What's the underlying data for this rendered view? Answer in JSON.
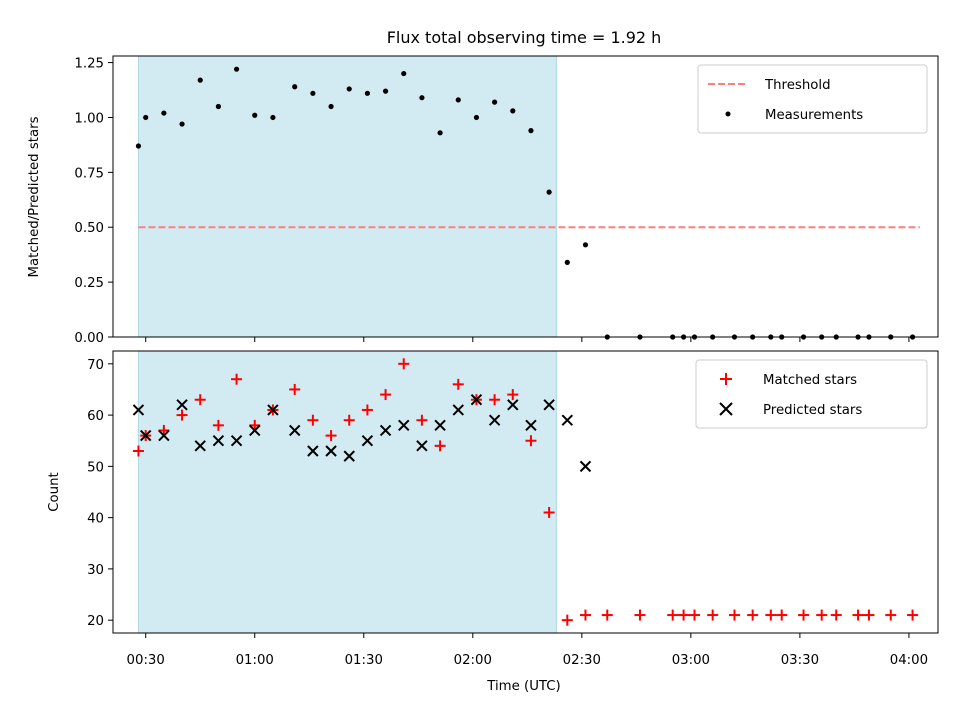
{
  "colors": {
    "shade": "#add8e6",
    "threshold": "#ff7f7f",
    "measurement": "#000000",
    "matched": "#ff0000",
    "predicted": "#000000"
  },
  "chart_data": [
    {
      "type": "scatter",
      "title": "Flux total observing time = 1.92 h",
      "xlabel": "",
      "ylabel": "Matched/Predicted stars",
      "x_axis": "time (UTC)",
      "xlim": [
        "00:21",
        "04:08"
      ],
      "ylim": [
        0,
        1.28
      ],
      "yticks": [
        0.0,
        0.25,
        0.5,
        0.75,
        1.0,
        1.25
      ],
      "ytick_labels": [
        "0.00",
        "0.25",
        "0.50",
        "0.75",
        "1.00",
        "1.25"
      ],
      "shaded_region": {
        "from": "00:28",
        "to": "02:23"
      },
      "threshold": {
        "name": "Threshold",
        "y": 0.5,
        "from": "00:28",
        "to": "04:03",
        "style": "dashed"
      },
      "legend": {
        "location": "upper right",
        "entries": [
          "Threshold",
          "Measurements"
        ]
      },
      "series": [
        {
          "name": "Measurements",
          "marker": "dot",
          "x": [
            "00:28",
            "00:30",
            "00:35",
            "00:40",
            "00:45",
            "00:50",
            "00:55",
            "01:00",
            "01:05",
            "01:11",
            "01:16",
            "01:21",
            "01:26",
            "01:31",
            "01:36",
            "01:41",
            "01:46",
            "01:51",
            "01:56",
            "02:01",
            "02:06",
            "02:11",
            "02:16",
            "02:21",
            "02:26",
            "02:31",
            "02:37",
            "02:46",
            "02:55",
            "02:58",
            "03:01",
            "03:06",
            "03:12",
            "03:17",
            "03:22",
            "03:25",
            "03:31",
            "03:36",
            "03:40",
            "03:46",
            "03:49",
            "03:55",
            "04:01"
          ],
          "y": [
            0.87,
            1.0,
            1.02,
            0.97,
            1.17,
            1.05,
            1.22,
            1.01,
            1.0,
            1.14,
            1.11,
            1.05,
            1.13,
            1.11,
            1.12,
            1.2,
            1.09,
            0.93,
            1.08,
            1.0,
            1.07,
            1.03,
            0.94,
            0.66,
            0.34,
            0.42,
            0,
            0,
            0,
            0,
            0,
            0,
            0,
            0,
            0,
            0,
            0,
            0,
            0,
            0,
            0,
            0,
            0
          ]
        }
      ]
    },
    {
      "type": "scatter",
      "xlabel": "Time (UTC)",
      "ylabel": "Count",
      "xlim": [
        "00:21",
        "04:08"
      ],
      "ylim": [
        17.5,
        72.5
      ],
      "xticks": [
        "00:30",
        "01:00",
        "01:30",
        "02:00",
        "02:30",
        "03:00",
        "03:30",
        "04:00"
      ],
      "yticks": [
        20,
        30,
        40,
        50,
        60,
        70
      ],
      "ytick_labels": [
        "20",
        "30",
        "40",
        "50",
        "60",
        "70"
      ],
      "shaded_region": {
        "from": "00:28",
        "to": "02:23"
      },
      "legend": {
        "location": "upper right",
        "entries": [
          "Matched stars",
          "Predicted stars"
        ]
      },
      "series": [
        {
          "name": "Matched stars",
          "marker": "plus",
          "x": [
            "00:28",
            "00:30",
            "00:35",
            "00:40",
            "00:45",
            "00:50",
            "00:55",
            "01:00",
            "01:05",
            "01:11",
            "01:16",
            "01:21",
            "01:26",
            "01:31",
            "01:36",
            "01:41",
            "01:46",
            "01:51",
            "01:56",
            "02:01",
            "02:06",
            "02:11",
            "02:16",
            "02:21",
            "02:26",
            "02:31",
            "02:37",
            "02:46",
            "02:55",
            "02:58",
            "03:01",
            "03:06",
            "03:12",
            "03:17",
            "03:22",
            "03:25",
            "03:31",
            "03:36",
            "03:40",
            "03:46",
            "03:49",
            "03:55",
            "04:01"
          ],
          "y": [
            53,
            56,
            57,
            60,
            63,
            58,
            67,
            58,
            61,
            65,
            59,
            56,
            59,
            61,
            64,
            70,
            59,
            54,
            66,
            63,
            63,
            64,
            55,
            41,
            20,
            21,
            21,
            21,
            21,
            21,
            21,
            21,
            21,
            21,
            21,
            21,
            21,
            21,
            21,
            21,
            21,
            21,
            21
          ]
        },
        {
          "name": "Predicted stars",
          "marker": "x",
          "x": [
            "00:28",
            "00:30",
            "00:35",
            "00:40",
            "00:45",
            "00:50",
            "00:55",
            "01:00",
            "01:05",
            "01:11",
            "01:16",
            "01:21",
            "01:26",
            "01:31",
            "01:36",
            "01:41",
            "01:46",
            "01:51",
            "01:56",
            "02:01",
            "02:06",
            "02:11",
            "02:16",
            "02:21",
            "02:26",
            "02:31"
          ],
          "y": [
            61,
            56,
            56,
            62,
            54,
            55,
            55,
            57,
            61,
            57,
            53,
            53,
            52,
            55,
            57,
            58,
            54,
            58,
            61,
            63,
            59,
            62,
            58,
            62,
            59,
            50
          ]
        }
      ]
    }
  ]
}
